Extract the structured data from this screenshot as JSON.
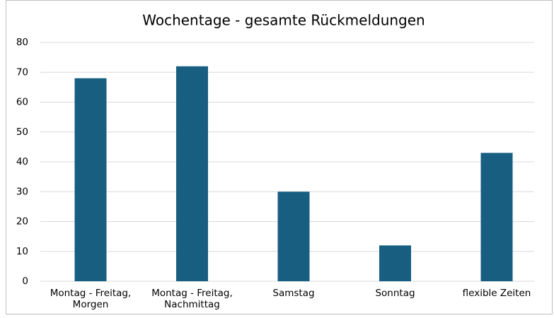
{
  "chart_data": {
    "type": "bar",
    "title": "Wochentage - gesamte Rückmeldungen",
    "categories": [
      "Montag - Freitag,\nMorgen",
      "Montag - Freitag,\nNachmittag",
      "Samstag",
      "Sonntag",
      "flexible Zeiten"
    ],
    "values": [
      68,
      72,
      30,
      12,
      43
    ],
    "color": "#175e81",
    "ylim": [
      0,
      80
    ],
    "yticks": [
      0,
      10,
      20,
      30,
      40,
      50,
      60,
      70,
      80
    ],
    "grid": true
  }
}
